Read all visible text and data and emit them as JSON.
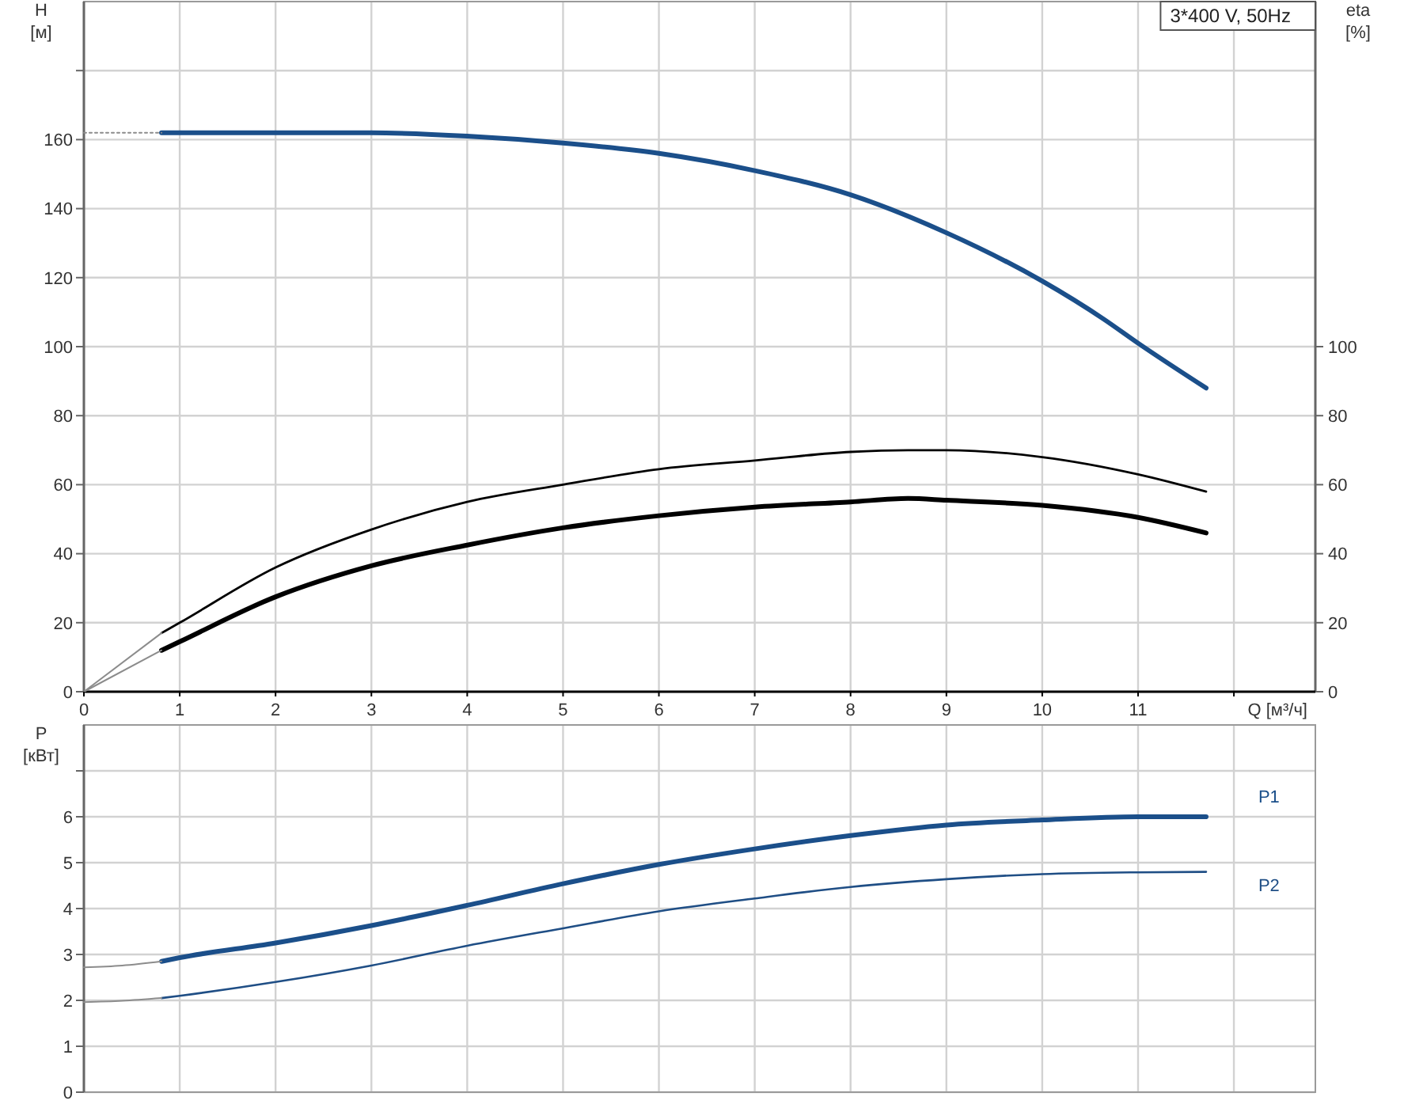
{
  "chart_data": [
    {
      "type": "line",
      "title": "3*400 V, 50Hz",
      "xlabel": "Q [м³/ч]",
      "ylabel": "H\n[м]",
      "y2label": "eta\n[%]",
      "xlim": [
        0,
        12.85
      ],
      "xticks": [
        0,
        1,
        2,
        3,
        4,
        5,
        6,
        7,
        8,
        9,
        10,
        11,
        {
          "value": 12,
          "label": null
        }
      ],
      "ylim": [
        0,
        200
      ],
      "yticks": [
        0,
        20,
        40,
        60,
        80,
        100,
        120,
        140,
        160,
        {
          "value": 180,
          "label": null
        }
      ],
      "y2lim": [
        0,
        200
      ],
      "y2ticks": [
        0,
        20,
        40,
        60,
        80,
        100
      ],
      "grid": true,
      "series": [
        {
          "color": "#1b4f8a",
          "x": [
            0.81,
            1,
            2,
            3,
            4,
            5,
            6,
            7,
            8,
            9,
            10,
            10.64,
            11,
            11.71
          ],
          "values": [
            162,
            162,
            162,
            162,
            161,
            159,
            156,
            151,
            144,
            133,
            119,
            108,
            101,
            88
          ]
        },
        {
          "color": "#000000",
          "x": [
            0.81,
            1,
            2,
            3,
            4,
            5,
            6,
            7,
            8,
            8.6,
            9,
            10,
            11,
            11.71
          ],
          "values": [
            17,
            20,
            36,
            47,
            55,
            60,
            64.5,
            67,
            69.5,
            70,
            70,
            68,
            63,
            58
          ]
        },
        {
          "color": "#000000",
          "x": [
            0.81,
            1,
            2,
            3,
            4,
            5,
            6,
            7,
            8,
            8.6,
            9,
            10,
            11,
            11.71
          ],
          "values": [
            12,
            14.5,
            27.5,
            36.5,
            42.5,
            47.5,
            51,
            53.5,
            55,
            56,
            55.5,
            54,
            50.5,
            46
          ]
        },
        {
          "color": "#8c8c8c",
          "line_style": "dotted",
          "x": [
            0,
            0.81
          ],
          "values": [
            162,
            162
          ]
        },
        {
          "color": "#8c8c8c",
          "x": [
            0,
            0.81
          ],
          "values": [
            0,
            17
          ]
        },
        {
          "color": "#8c8c8c",
          "x": [
            0,
            0.81
          ],
          "values": [
            0,
            12
          ]
        }
      ]
    },
    {
      "type": "line",
      "ylabel": "P\n[кВт]",
      "xlim": [
        0,
        12.85
      ],
      "xticks": [
        0,
        1,
        2,
        3,
        4,
        5,
        6,
        7,
        8,
        9,
        10,
        11,
        {
          "value": 12,
          "label": null
        }
      ],
      "ylim": [
        0,
        8
      ],
      "yticks": [
        0,
        1,
        2,
        3,
        4,
        5,
        6,
        {
          "value": 7,
          "label": null
        }
      ],
      "grid": true,
      "tick_labels": "y",
      "series": [
        {
          "name": "P1",
          "color": "#1b4f8a",
          "x": [
            0.81,
            1,
            2,
            3,
            4,
            5,
            6,
            7,
            8,
            9,
            10,
            11,
            11.71
          ],
          "values": [
            2.85,
            2.93,
            3.25,
            3.63,
            4.07,
            4.54,
            4.96,
            5.3,
            5.59,
            5.82,
            5.93,
            6.0,
            6.0
          ]
        },
        {
          "name": "P2",
          "color": "#1f4e85",
          "x": [
            0.81,
            1,
            2,
            3,
            4,
            5,
            6,
            7,
            8,
            9,
            10,
            11,
            11.71
          ],
          "values": [
            2.05,
            2.1,
            2.4,
            2.76,
            3.19,
            3.57,
            3.94,
            4.22,
            4.47,
            4.64,
            4.75,
            4.79,
            4.8
          ]
        },
        {
          "color": "#8c8c8c",
          "x": [
            0,
            0.4,
            0.81
          ],
          "values": [
            2.72,
            2.76,
            2.85
          ]
        },
        {
          "color": "#8c8c8c",
          "x": [
            0,
            0.4,
            0.81
          ],
          "values": [
            1.96,
            1.99,
            2.05
          ]
        }
      ]
    }
  ]
}
